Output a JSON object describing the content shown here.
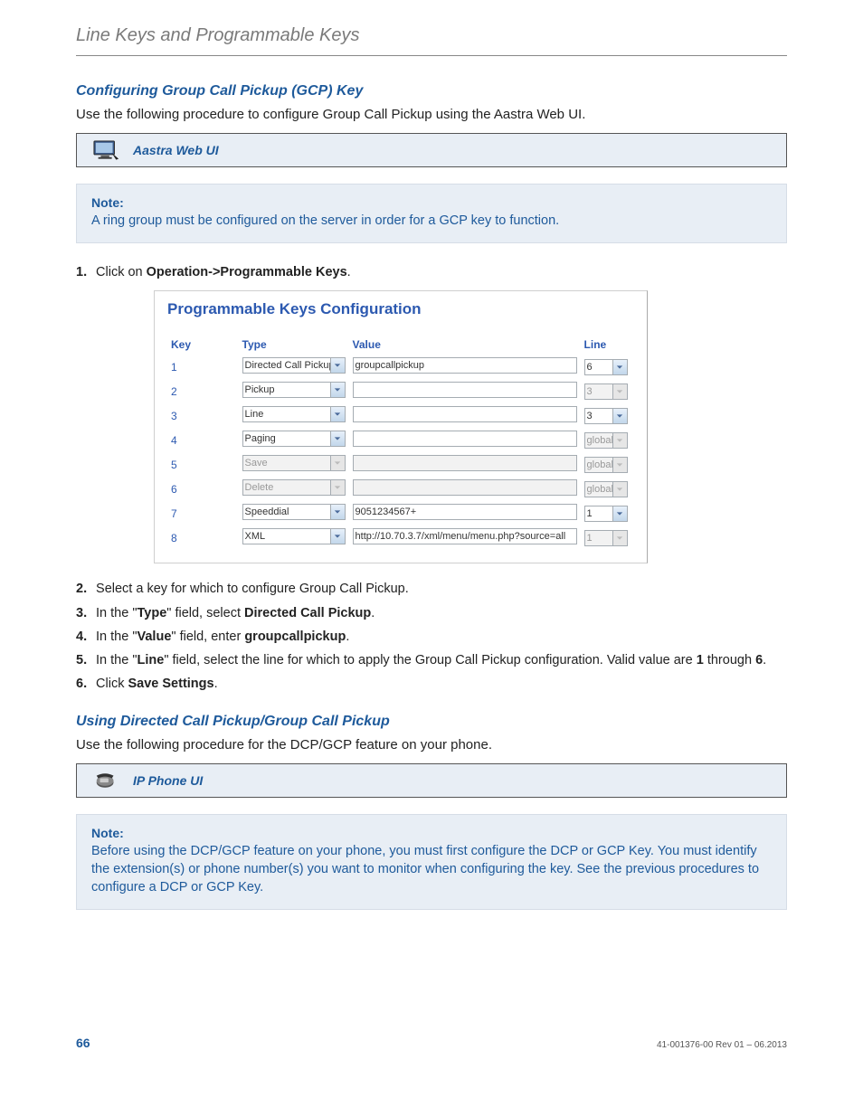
{
  "header": {
    "breadcrumb": "Line Keys and Programmable Keys"
  },
  "section1": {
    "heading": "Configuring Group Call Pickup (GCP) Key",
    "intro": "Use the following procedure to configure Group Call Pickup using the Aastra Web UI.",
    "ui_box_label": "Aastra Web UI"
  },
  "note1": {
    "title": "Note:",
    "body": "A ring group must be configured on the server in order for a GCP key to function."
  },
  "steps1": {
    "s1a": "Click on ",
    "s1b": "Operation->Programmable Keys",
    "s1c": ".",
    "s2": "Select a key for which to configure Group Call Pickup.",
    "s3a": "In the \"",
    "s3b": "Type",
    "s3c": "\" field, select ",
    "s3d": "Directed Call Pickup",
    "s3e": ".",
    "s4a": "In the \"",
    "s4b": "Value",
    "s4c": "\" field, enter ",
    "s4d": "groupcallpickup",
    "s4e": ".",
    "s5a": "In the \"",
    "s5b": "Line",
    "s5c": "\" field, select the line for which to apply the Group Call Pickup configuration. Valid value are ",
    "s5d": "1",
    "s5e": " through ",
    "s5f": "6",
    "s5g": ".",
    "s6a": "Click ",
    "s6b": "Save Settings",
    "s6c": "."
  },
  "screenshot": {
    "title": "Programmable Keys Configuration",
    "columns": {
      "key": "Key",
      "type": "Type",
      "value": "Value",
      "line": "Line"
    },
    "rows": [
      {
        "key": "1",
        "type": "Directed Call Pickup",
        "type_disabled": false,
        "value": "groupcallpickup",
        "value_disabled": false,
        "line": "6",
        "line_disabled": false
      },
      {
        "key": "2",
        "type": "Pickup",
        "type_disabled": false,
        "value": "",
        "value_disabled": false,
        "line": "3",
        "line_disabled": true
      },
      {
        "key": "3",
        "type": "Line",
        "type_disabled": false,
        "value": "",
        "value_disabled": false,
        "line": "3",
        "line_disabled": false
      },
      {
        "key": "4",
        "type": "Paging",
        "type_disabled": false,
        "value": "",
        "value_disabled": false,
        "line": "global",
        "line_disabled": true
      },
      {
        "key": "5",
        "type": "Save",
        "type_disabled": true,
        "value": "",
        "value_disabled": true,
        "line": "global",
        "line_disabled": true
      },
      {
        "key": "6",
        "type": "Delete",
        "type_disabled": true,
        "value": "",
        "value_disabled": true,
        "line": "global",
        "line_disabled": true
      },
      {
        "key": "7",
        "type": "Speeddial",
        "type_disabled": false,
        "value": "9051234567+",
        "value_disabled": false,
        "line": "1",
        "line_disabled": false
      },
      {
        "key": "8",
        "type": "XML",
        "type_disabled": false,
        "value": "http://10.70.3.7/xml/menu/menu.php?source=all",
        "value_disabled": false,
        "line": "1",
        "line_disabled": true
      }
    ]
  },
  "section2": {
    "heading": "Using Directed Call Pickup/Group Call Pickup",
    "intro": "Use the following procedure for the DCP/GCP feature on your phone.",
    "ui_box_label": "IP Phone UI"
  },
  "note2": {
    "title": "Note:",
    "body": "Before using the DCP/GCP feature on your phone, you must first configure the DCP or GCP Key. You must identify the extension(s) or phone number(s) you want to monitor when configuring the key. See the previous procedures to configure a DCP or GCP Key."
  },
  "footer": {
    "page": "66",
    "rev": "41-001376-00 Rev 01 – 06.2013"
  },
  "colors": {
    "heading_blue": "#1e5a9b",
    "sc_blue": "#2c59b0",
    "box_bg": "#e8eef5",
    "border": "#a5acb2",
    "text": "#222222",
    "muted": "#7a7a7a"
  }
}
